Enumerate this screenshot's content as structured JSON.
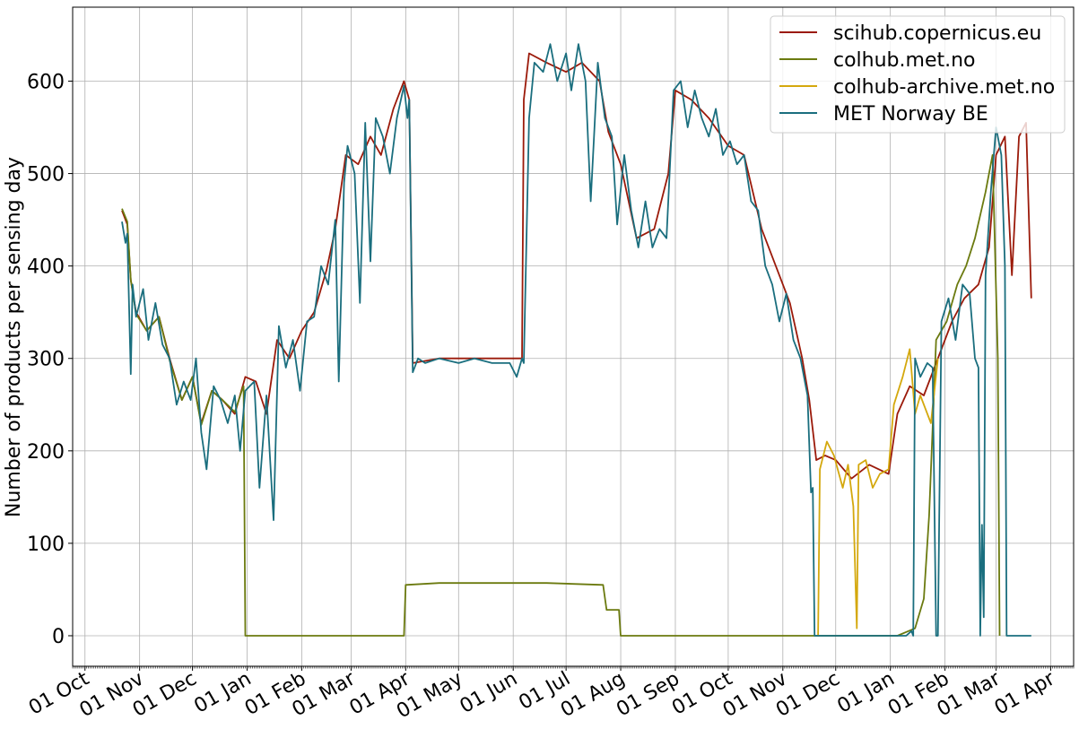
{
  "chart_data": {
    "type": "line",
    "title": "",
    "xlabel": "",
    "ylabel": "Number of products per sensing day",
    "ylim": [
      -33,
      680
    ],
    "xlim": [
      "2022-09-24",
      "2024-04-14"
    ],
    "grid": true,
    "legend_position": "top-right",
    "x_ticks": [
      {
        "date": "2022-10-01",
        "label": "01 Oct"
      },
      {
        "date": "2022-11-01",
        "label": "01 Nov"
      },
      {
        "date": "2022-12-01",
        "label": "01 Dec"
      },
      {
        "date": "2023-01-01",
        "label": "01 Jan"
      },
      {
        "date": "2023-02-01",
        "label": "01 Feb"
      },
      {
        "date": "2023-03-01",
        "label": "01 Mar"
      },
      {
        "date": "2023-04-01",
        "label": "01 Apr"
      },
      {
        "date": "2023-05-01",
        "label": "01 May"
      },
      {
        "date": "2023-06-01",
        "label": "01 Jun"
      },
      {
        "date": "2023-07-01",
        "label": "01 Jul"
      },
      {
        "date": "2023-08-01",
        "label": "01 Aug"
      },
      {
        "date": "2023-09-01",
        "label": "01 Sep"
      },
      {
        "date": "2023-10-01",
        "label": "01 Oct"
      },
      {
        "date": "2023-11-01",
        "label": "01 Nov"
      },
      {
        "date": "2023-12-01",
        "label": "01 Dec"
      },
      {
        "date": "2024-01-01",
        "label": "01 Jan"
      },
      {
        "date": "2024-02-01",
        "label": "01 Feb"
      },
      {
        "date": "2024-03-01",
        "label": "01 Mar"
      },
      {
        "date": "2024-04-01",
        "label": "01 Apr"
      }
    ],
    "y_ticks": [
      0,
      100,
      200,
      300,
      400,
      500,
      600
    ],
    "series": [
      {
        "name": "scihub.copernicus.eu",
        "color": "#9b1a0a",
        "points": [
          [
            "2022-10-22",
            460
          ],
          [
            "2022-10-25",
            445
          ],
          [
            "2022-10-27",
            385
          ],
          [
            "2022-10-30",
            350
          ],
          [
            "2022-11-05",
            330
          ],
          [
            "2022-11-12",
            345
          ],
          [
            "2022-11-18",
            300
          ],
          [
            "2022-11-25",
            255
          ],
          [
            "2022-12-01",
            280
          ],
          [
            "2022-12-06",
            230
          ],
          [
            "2022-12-12",
            265
          ],
          [
            "2022-12-18",
            255
          ],
          [
            "2022-12-25",
            240
          ],
          [
            "2022-12-31",
            280
          ],
          [
            "2023-01-06",
            275
          ],
          [
            "2023-01-12",
            240
          ],
          [
            "2023-01-18",
            320
          ],
          [
            "2023-01-25",
            300
          ],
          [
            "2023-02-01",
            330
          ],
          [
            "2023-02-08",
            350
          ],
          [
            "2023-02-15",
            395
          ],
          [
            "2023-02-20",
            440
          ],
          [
            "2023-02-26",
            520
          ],
          [
            "2023-03-05",
            510
          ],
          [
            "2023-03-12",
            540
          ],
          [
            "2023-03-18",
            520
          ],
          [
            "2023-03-25",
            570
          ],
          [
            "2023-03-31",
            600
          ],
          [
            "2023-04-03",
            580
          ],
          [
            "2023-04-05",
            295
          ],
          [
            "2023-04-20",
            300
          ],
          [
            "2023-05-10",
            300
          ],
          [
            "2023-05-30",
            300
          ],
          [
            "2023-06-06",
            300
          ],
          [
            "2023-06-07",
            580
          ],
          [
            "2023-06-10",
            630
          ],
          [
            "2023-06-20",
            620
          ],
          [
            "2023-07-01",
            610
          ],
          [
            "2023-07-10",
            620
          ],
          [
            "2023-07-20",
            600
          ],
          [
            "2023-07-25",
            545
          ],
          [
            "2023-08-01",
            510
          ],
          [
            "2023-08-10",
            430
          ],
          [
            "2023-08-20",
            440
          ],
          [
            "2023-08-28",
            500
          ],
          [
            "2023-09-01",
            590
          ],
          [
            "2023-09-10",
            580
          ],
          [
            "2023-09-20",
            560
          ],
          [
            "2023-10-01",
            530
          ],
          [
            "2023-10-10",
            520
          ],
          [
            "2023-10-20",
            440
          ],
          [
            "2023-10-30",
            390
          ],
          [
            "2023-11-05",
            360
          ],
          [
            "2023-11-12",
            300
          ],
          [
            "2023-11-16",
            255
          ],
          [
            "2023-11-20",
            190
          ],
          [
            "2023-11-25",
            195
          ],
          [
            "2023-12-01",
            190
          ],
          [
            "2023-12-10",
            170
          ],
          [
            "2023-12-20",
            185
          ],
          [
            "2023-12-31",
            175
          ],
          [
            "2024-01-05",
            240
          ],
          [
            "2024-01-12",
            270
          ],
          [
            "2024-01-20",
            260
          ],
          [
            "2024-01-28",
            300
          ],
          [
            "2024-02-05",
            340
          ],
          [
            "2024-02-12",
            365
          ],
          [
            "2024-02-20",
            380
          ],
          [
            "2024-02-26",
            420
          ],
          [
            "2024-03-01",
            520
          ],
          [
            "2024-03-06",
            540
          ],
          [
            "2024-03-10",
            390
          ],
          [
            "2024-03-14",
            540
          ],
          [
            "2024-03-18",
            555
          ],
          [
            "2024-03-21",
            365
          ]
        ]
      },
      {
        "name": "colhub.met.no",
        "color": "#6b7a0f",
        "points": [
          [
            "2022-10-22",
            462
          ],
          [
            "2022-10-25",
            448
          ],
          [
            "2022-10-27",
            385
          ],
          [
            "2022-10-30",
            348
          ],
          [
            "2022-11-05",
            330
          ],
          [
            "2022-11-12",
            345
          ],
          [
            "2022-11-18",
            298
          ],
          [
            "2022-11-25",
            255
          ],
          [
            "2022-12-01",
            280
          ],
          [
            "2022-12-06",
            228
          ],
          [
            "2022-12-12",
            265
          ],
          [
            "2022-12-18",
            255
          ],
          [
            "2022-12-25",
            242
          ],
          [
            "2022-12-29",
            265
          ],
          [
            "2022-12-30",
            270
          ],
          [
            "2022-12-31",
            0
          ],
          [
            "2023-03-31",
            0
          ],
          [
            "2023-04-01",
            55
          ],
          [
            "2023-04-20",
            57
          ],
          [
            "2023-05-20",
            57
          ],
          [
            "2023-06-20",
            57
          ],
          [
            "2023-07-22",
            55
          ],
          [
            "2023-07-24",
            28
          ],
          [
            "2023-07-31",
            28
          ],
          [
            "2023-08-01",
            0
          ],
          [
            "2024-01-05",
            0
          ],
          [
            "2024-01-15",
            8
          ],
          [
            "2024-01-20",
            40
          ],
          [
            "2024-01-23",
            130
          ],
          [
            "2024-01-27",
            320
          ],
          [
            "2024-02-02",
            340
          ],
          [
            "2024-02-08",
            380
          ],
          [
            "2024-02-13",
            400
          ],
          [
            "2024-02-18",
            430
          ],
          [
            "2024-02-24",
            480
          ],
          [
            "2024-02-28",
            520
          ],
          [
            "2024-03-02",
            300
          ],
          [
            "2024-03-03",
            0
          ]
        ]
      },
      {
        "name": "colhub-archive.met.no",
        "color": "#d4a80d",
        "points": [
          [
            "2023-11-21",
            0
          ],
          [
            "2023-11-22",
            180
          ],
          [
            "2023-11-26",
            210
          ],
          [
            "2023-11-30",
            195
          ],
          [
            "2023-12-05",
            160
          ],
          [
            "2023-12-08",
            185
          ],
          [
            "2023-12-11",
            140
          ],
          [
            "2023-12-13",
            8
          ],
          [
            "2023-12-14",
            185
          ],
          [
            "2023-12-18",
            190
          ],
          [
            "2023-12-22",
            160
          ],
          [
            "2023-12-26",
            175
          ],
          [
            "2023-12-31",
            180
          ],
          [
            "2024-01-03",
            250
          ],
          [
            "2024-01-08",
            280
          ],
          [
            "2024-01-12",
            310
          ],
          [
            "2024-01-15",
            240
          ],
          [
            "2024-01-18",
            260
          ],
          [
            "2024-01-24",
            230
          ],
          [
            "2024-01-28",
            300
          ]
        ]
      },
      {
        "name": "MET Norway BE",
        "color": "#1a6e7e",
        "points": [
          [
            "2022-10-22",
            448
          ],
          [
            "2022-10-24",
            425
          ],
          [
            "2022-10-25",
            435
          ],
          [
            "2022-10-27",
            283
          ],
          [
            "2022-10-28",
            380
          ],
          [
            "2022-10-30",
            345
          ],
          [
            "2022-11-03",
            375
          ],
          [
            "2022-11-06",
            320
          ],
          [
            "2022-11-10",
            360
          ],
          [
            "2022-11-14",
            315
          ],
          [
            "2022-11-18",
            300
          ],
          [
            "2022-11-22",
            250
          ],
          [
            "2022-11-26",
            275
          ],
          [
            "2022-11-30",
            255
          ],
          [
            "2022-12-03",
            300
          ],
          [
            "2022-12-06",
            220
          ],
          [
            "2022-12-09",
            180
          ],
          [
            "2022-12-13",
            270
          ],
          [
            "2022-12-17",
            255
          ],
          [
            "2022-12-21",
            230
          ],
          [
            "2022-12-25",
            260
          ],
          [
            "2022-12-28",
            200
          ],
          [
            "2022-12-31",
            265
          ],
          [
            "2023-01-05",
            275
          ],
          [
            "2023-01-08",
            160
          ],
          [
            "2023-01-12",
            260
          ],
          [
            "2023-01-16",
            125
          ],
          [
            "2023-01-19",
            335
          ],
          [
            "2023-01-23",
            290
          ],
          [
            "2023-01-27",
            320
          ],
          [
            "2023-01-31",
            265
          ],
          [
            "2023-02-04",
            340
          ],
          [
            "2023-02-08",
            345
          ],
          [
            "2023-02-12",
            400
          ],
          [
            "2023-02-16",
            380
          ],
          [
            "2023-02-20",
            450
          ],
          [
            "2023-02-22",
            275
          ],
          [
            "2023-02-25",
            490
          ],
          [
            "2023-02-27",
            530
          ],
          [
            "2023-03-03",
            500
          ],
          [
            "2023-03-06",
            360
          ],
          [
            "2023-03-09",
            555
          ],
          [
            "2023-03-12",
            405
          ],
          [
            "2023-03-15",
            560
          ],
          [
            "2023-03-19",
            540
          ],
          [
            "2023-03-23",
            500
          ],
          [
            "2023-03-27",
            560
          ],
          [
            "2023-03-31",
            595
          ],
          [
            "2023-04-02",
            560
          ],
          [
            "2023-04-03",
            580
          ],
          [
            "2023-04-05",
            285
          ],
          [
            "2023-04-08",
            300
          ],
          [
            "2023-04-12",
            295
          ],
          [
            "2023-04-20",
            300
          ],
          [
            "2023-05-01",
            295
          ],
          [
            "2023-05-10",
            300
          ],
          [
            "2023-05-20",
            295
          ],
          [
            "2023-05-30",
            295
          ],
          [
            "2023-06-03",
            280
          ],
          [
            "2023-06-06",
            300
          ],
          [
            "2023-06-07",
            295
          ],
          [
            "2023-06-10",
            560
          ],
          [
            "2023-06-13",
            620
          ],
          [
            "2023-06-18",
            610
          ],
          [
            "2023-06-22",
            640
          ],
          [
            "2023-06-26",
            600
          ],
          [
            "2023-07-01",
            630
          ],
          [
            "2023-07-04",
            590
          ],
          [
            "2023-07-08",
            640
          ],
          [
            "2023-07-12",
            600
          ],
          [
            "2023-07-15",
            470
          ],
          [
            "2023-07-19",
            620
          ],
          [
            "2023-07-23",
            560
          ],
          [
            "2023-07-27",
            540
          ],
          [
            "2023-07-30",
            445
          ],
          [
            "2023-08-03",
            520
          ],
          [
            "2023-08-07",
            460
          ],
          [
            "2023-08-11",
            420
          ],
          [
            "2023-08-15",
            470
          ],
          [
            "2023-08-19",
            420
          ],
          [
            "2023-08-23",
            440
          ],
          [
            "2023-08-27",
            430
          ],
          [
            "2023-08-31",
            590
          ],
          [
            "2023-09-04",
            600
          ],
          [
            "2023-09-08",
            550
          ],
          [
            "2023-09-12",
            590
          ],
          [
            "2023-09-16",
            560
          ],
          [
            "2023-09-20",
            540
          ],
          [
            "2023-09-24",
            570
          ],
          [
            "2023-09-28",
            520
          ],
          [
            "2023-10-02",
            535
          ],
          [
            "2023-10-06",
            510
          ],
          [
            "2023-10-10",
            520
          ],
          [
            "2023-10-14",
            470
          ],
          [
            "2023-10-18",
            460
          ],
          [
            "2023-10-22",
            400
          ],
          [
            "2023-10-26",
            380
          ],
          [
            "2023-10-30",
            340
          ],
          [
            "2023-11-03",
            370
          ],
          [
            "2023-11-07",
            320
          ],
          [
            "2023-11-11",
            300
          ],
          [
            "2023-11-15",
            260
          ],
          [
            "2023-11-17",
            155
          ],
          [
            "2023-11-18",
            160
          ],
          [
            "2023-11-19",
            0
          ],
          [
            "2024-01-10",
            0
          ],
          [
            "2024-01-13",
            5
          ],
          [
            "2024-01-14",
            0
          ],
          [
            "2024-01-15",
            300
          ],
          [
            "2024-01-18",
            280
          ],
          [
            "2024-01-22",
            295
          ],
          [
            "2024-01-25",
            290
          ],
          [
            "2024-01-27",
            0
          ],
          [
            "2024-01-28",
            0
          ],
          [
            "2024-01-30",
            340
          ],
          [
            "2024-02-03",
            365
          ],
          [
            "2024-02-07",
            320
          ],
          [
            "2024-02-11",
            380
          ],
          [
            "2024-02-15",
            370
          ],
          [
            "2024-02-18",
            300
          ],
          [
            "2024-02-20",
            290
          ],
          [
            "2024-02-21",
            0
          ],
          [
            "2024-02-22",
            120
          ],
          [
            "2024-02-23",
            20
          ],
          [
            "2024-02-24",
            390
          ],
          [
            "2024-02-27",
            480
          ],
          [
            "2024-03-01",
            550
          ],
          [
            "2024-03-04",
            520
          ],
          [
            "2024-03-06",
            400
          ],
          [
            "2024-03-07",
            0
          ],
          [
            "2024-03-21",
            0
          ]
        ]
      }
    ]
  }
}
